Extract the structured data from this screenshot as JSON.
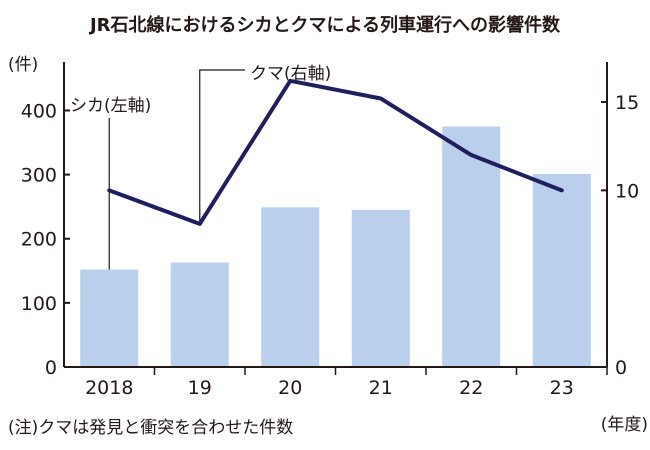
{
  "chart_data": {
    "type": "bar+line",
    "title": "JR石北線におけるシカとクマによる列車運行への影響件数",
    "categories": [
      "2018",
      "19",
      "20",
      "21",
      "22",
      "23"
    ],
    "bar_series": {
      "name": "シカ(左軸)",
      "axis": "left",
      "color": "#b9cfec",
      "values": [
        152,
        163,
        249,
        245,
        375,
        301
      ]
    },
    "line_series": {
      "name": "クマ(右軸)",
      "axis": "right",
      "color": "#1f1f5e",
      "values": [
        10,
        8.1,
        16.2,
        15.2,
        12,
        10
      ]
    },
    "left_axis": {
      "unit": "(件)",
      "ylim": [
        0,
        460
      ],
      "ticks": [
        "0",
        "100",
        "200",
        "300",
        "400"
      ]
    },
    "right_axis": {
      "ylim": [
        0,
        16.7
      ],
      "ticks": [
        "0",
        "10",
        "15"
      ]
    },
    "x_unit": "(年度)",
    "note": "(注)クマは発見と衝突を合わせた件数"
  }
}
